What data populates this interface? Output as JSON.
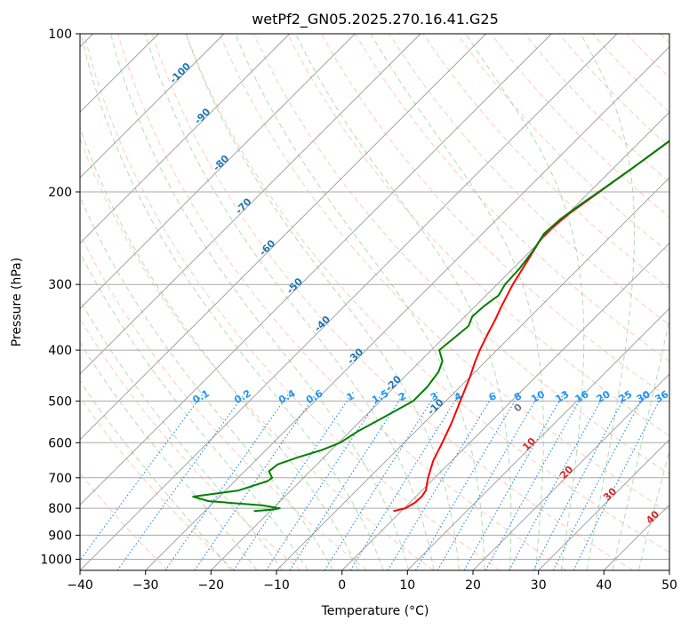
{
  "chart_data": {
    "type": "line",
    "title": "wetPf2_GN05.2025.270.16.41.G25",
    "xlabel": "Temperature (°C)",
    "ylabel": "Pressure (hPa)",
    "xlim": [
      -40,
      50
    ],
    "ylim": [
      1050,
      100
    ],
    "y_scale": "log",
    "skew": true,
    "grid": true,
    "x_ticks": [
      -40,
      -30,
      -20,
      -10,
      0,
      10,
      20,
      30,
      40,
      50
    ],
    "y_ticks": [
      100,
      200,
      300,
      400,
      500,
      600,
      700,
      800,
      900,
      1000
    ],
    "isotherm_labels": [
      {
        "text": "-100",
        "t": -100,
        "p": 120
      },
      {
        "text": "-90",
        "t": -90,
        "p": 145
      },
      {
        "text": "-80",
        "t": -80,
        "p": 178
      },
      {
        "text": "-70",
        "t": -70,
        "p": 215
      },
      {
        "text": "-60",
        "t": -60,
        "p": 258
      },
      {
        "text": "-50",
        "t": -50,
        "p": 305
      },
      {
        "text": "-40",
        "t": -40,
        "p": 360
      },
      {
        "text": "-30",
        "t": -30,
        "p": 415
      },
      {
        "text": "-20",
        "t": -20,
        "p": 468
      },
      {
        "text": "-10",
        "t": -10,
        "p": 518
      }
    ],
    "mixing_ratio_labels": [
      "0.1",
      "0.2",
      "0.4",
      "0.6",
      "1",
      "1.5",
      "2",
      "3",
      "4",
      "6",
      "8",
      "10",
      "13",
      "16",
      "20",
      "25",
      "30",
      "36"
    ],
    "moist_adiabat_labels": [
      {
        "text": "0",
        "color": "#777777"
      },
      {
        "text": "10",
        "color": "#d62728"
      },
      {
        "text": "20",
        "color": "#d62728"
      },
      {
        "text": "30",
        "color": "#d62728"
      },
      {
        "text": "40",
        "color": "#d62728"
      }
    ],
    "series": [
      {
        "color": "#ff0000",
        "points": [
          [
            810,
            -1.2
          ],
          [
            800,
            0.2
          ],
          [
            780,
            0.8
          ],
          [
            760,
            0.9
          ],
          [
            740,
            0.6
          ],
          [
            720,
            -0.2
          ],
          [
            700,
            -1.0
          ],
          [
            650,
            -2.8
          ],
          [
            600,
            -4.2
          ],
          [
            550,
            -5.8
          ],
          [
            500,
            -7.8
          ],
          [
            450,
            -10.0
          ],
          [
            420,
            -11.6
          ],
          [
            400,
            -12.6
          ],
          [
            370,
            -14.0
          ],
          [
            350,
            -14.9
          ],
          [
            330,
            -16.0
          ],
          [
            300,
            -17.6
          ],
          [
            270,
            -19.0
          ],
          [
            245,
            -20.3
          ],
          [
            235,
            -20.3
          ],
          [
            220,
            -19.8
          ],
          [
            200,
            -18.5
          ],
          [
            180,
            -17.1
          ],
          [
            160,
            -15.6
          ],
          [
            140,
            -14.4
          ],
          [
            120,
            -13.4
          ],
          [
            110,
            -12.9
          ],
          [
            100,
            -12.3
          ]
        ]
      },
      {
        "color": "#008000",
        "points": [
          [
            810,
            -22.5
          ],
          [
            805,
            -20.0
          ],
          [
            800,
            -19.0
          ],
          [
            790,
            -22.0
          ],
          [
            775,
            -31.0
          ],
          [
            760,
            -34.0
          ],
          [
            740,
            -28.0
          ],
          [
            720,
            -26.0
          ],
          [
            710,
            -25.0
          ],
          [
            700,
            -24.8
          ],
          [
            680,
            -26.3
          ],
          [
            660,
            -26.0
          ],
          [
            640,
            -24.0
          ],
          [
            620,
            -21.5
          ],
          [
            600,
            -19.8
          ],
          [
            570,
            -18.8
          ],
          [
            540,
            -17.2
          ],
          [
            500,
            -15.0
          ],
          [
            470,
            -15.0
          ],
          [
            440,
            -15.6
          ],
          [
            420,
            -16.6
          ],
          [
            400,
            -18.8
          ],
          [
            380,
            -18.4
          ],
          [
            360,
            -18.0
          ],
          [
            345,
            -18.9
          ],
          [
            330,
            -18.7
          ],
          [
            315,
            -18.1
          ],
          [
            300,
            -18.8
          ],
          [
            280,
            -19.0
          ],
          [
            260,
            -19.6
          ],
          [
            240,
            -20.6
          ],
          [
            225,
            -20.3
          ],
          [
            210,
            -19.4
          ],
          [
            200,
            -18.6
          ],
          [
            180,
            -17.1
          ],
          [
            160,
            -15.6
          ],
          [
            140,
            -14.5
          ],
          [
            120,
            -13.5
          ],
          [
            110,
            -13.0
          ],
          [
            100,
            -12.4
          ]
        ]
      }
    ]
  }
}
